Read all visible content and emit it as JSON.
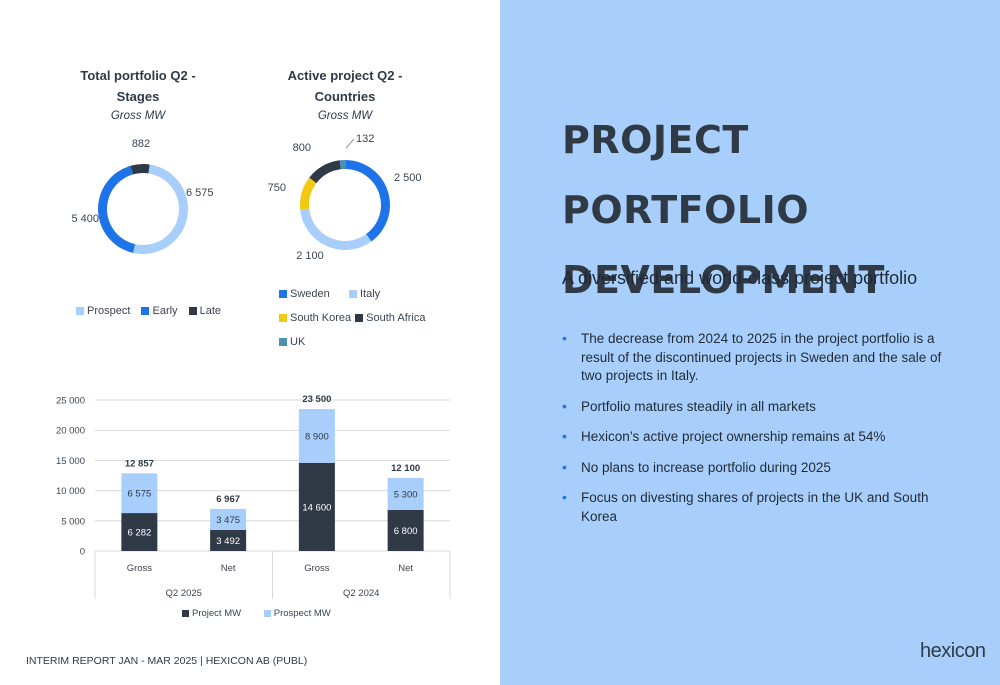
{
  "footer": "INTERIM REPORT JAN - MAR 2025 | HEXICON AB (PUBL)",
  "logo": "hexicon",
  "right": {
    "headline_line1": "PROJECT PORTFOLIO",
    "headline_line2": "DEVELOPMENT",
    "subheading": "A diversified and world-class project portfolio",
    "bullets": [
      "The decrease from 2024 to 2025 in the project portfolio is a result of the discontinued projects in Sweden and the sale of two projects in Italy.",
      "Portfolio matures steadily in all markets",
      "Hexicon’s active project ownership remains at 54%",
      "No plans to increase portfolio during 2025",
      "Focus on divesting shares of projects in the UK and South Korea"
    ]
  },
  "colors": {
    "prospect": "#a8cffb",
    "early": "#1f73e8",
    "late": "#2f3a46",
    "sweden": "#1f73e8",
    "italy": "#a8cffb",
    "south_korea": "#f2c811",
    "south_africa": "#2f3a46",
    "uk": "#4a8fb5",
    "project_mw": "#2f3a46",
    "prospect_mw": "#a8cffb"
  },
  "chart_data": [
    {
      "type": "pie",
      "variant": "donut",
      "title": "Total portfolio Q2 - Stages",
      "subtitle": "Gross MW",
      "legend_position": "bottom",
      "slices": [
        {
          "label": "Prospect",
          "value": 6575,
          "display": "6 575",
          "color": "#a8cffb"
        },
        {
          "label": "Early",
          "value": 5400,
          "display": "5 400",
          "color": "#1f73e8"
        },
        {
          "label": "Late",
          "value": 882,
          "display": "882",
          "color": "#2f3a46"
        }
      ]
    },
    {
      "type": "pie",
      "variant": "donut",
      "title": "Active project Q2 - Countries",
      "subtitle": "Gross MW",
      "legend_position": "bottom",
      "slices": [
        {
          "label": "Sweden",
          "value": 2500,
          "display": "2 500",
          "color": "#1f73e8"
        },
        {
          "label": "Italy",
          "value": 2100,
          "display": "2 100",
          "color": "#a8cffb"
        },
        {
          "label": "South Korea",
          "value": 750,
          "display": "750",
          "color": "#f2c811"
        },
        {
          "label": "South Africa",
          "value": 800,
          "display": "800",
          "color": "#2f3a46"
        },
        {
          "label": "UK",
          "value": 132,
          "display": "132",
          "color": "#4a8fb5"
        }
      ]
    },
    {
      "type": "bar",
      "variant": "stacked",
      "categories": [
        "Gross",
        "Net",
        "Gross",
        "Net"
      ],
      "groups": [
        {
          "label": "Q2 2025",
          "categories": [
            "Gross",
            "Net"
          ]
        },
        {
          "label": "Q2 2024",
          "categories": [
            "Gross",
            "Net"
          ]
        }
      ],
      "series": [
        {
          "name": "Project MW",
          "values": [
            6282,
            3492,
            14600,
            6800
          ],
          "display": [
            "6 282",
            "3 492",
            "14 600",
            "6 800"
          ],
          "color": "#2f3a46"
        },
        {
          "name": "Prospect MW",
          "values": [
            6575,
            3475,
            8900,
            5300
          ],
          "display": [
            "6 575",
            "3 475",
            "8 900",
            "5 300"
          ],
          "color": "#a8cffb"
        }
      ],
      "totals": [
        12857,
        6967,
        23500,
        12100
      ],
      "totals_display": [
        "12 857",
        "6 967",
        "23 500",
        "12 100"
      ],
      "ylim": [
        0,
        25000
      ],
      "yticks": [
        0,
        5000,
        10000,
        15000,
        20000,
        25000
      ],
      "ytick_labels": [
        "0",
        "5 000",
        "10 000",
        "15 000",
        "20 000",
        "25 000"
      ],
      "grid": true,
      "legend_position": "bottom"
    }
  ]
}
